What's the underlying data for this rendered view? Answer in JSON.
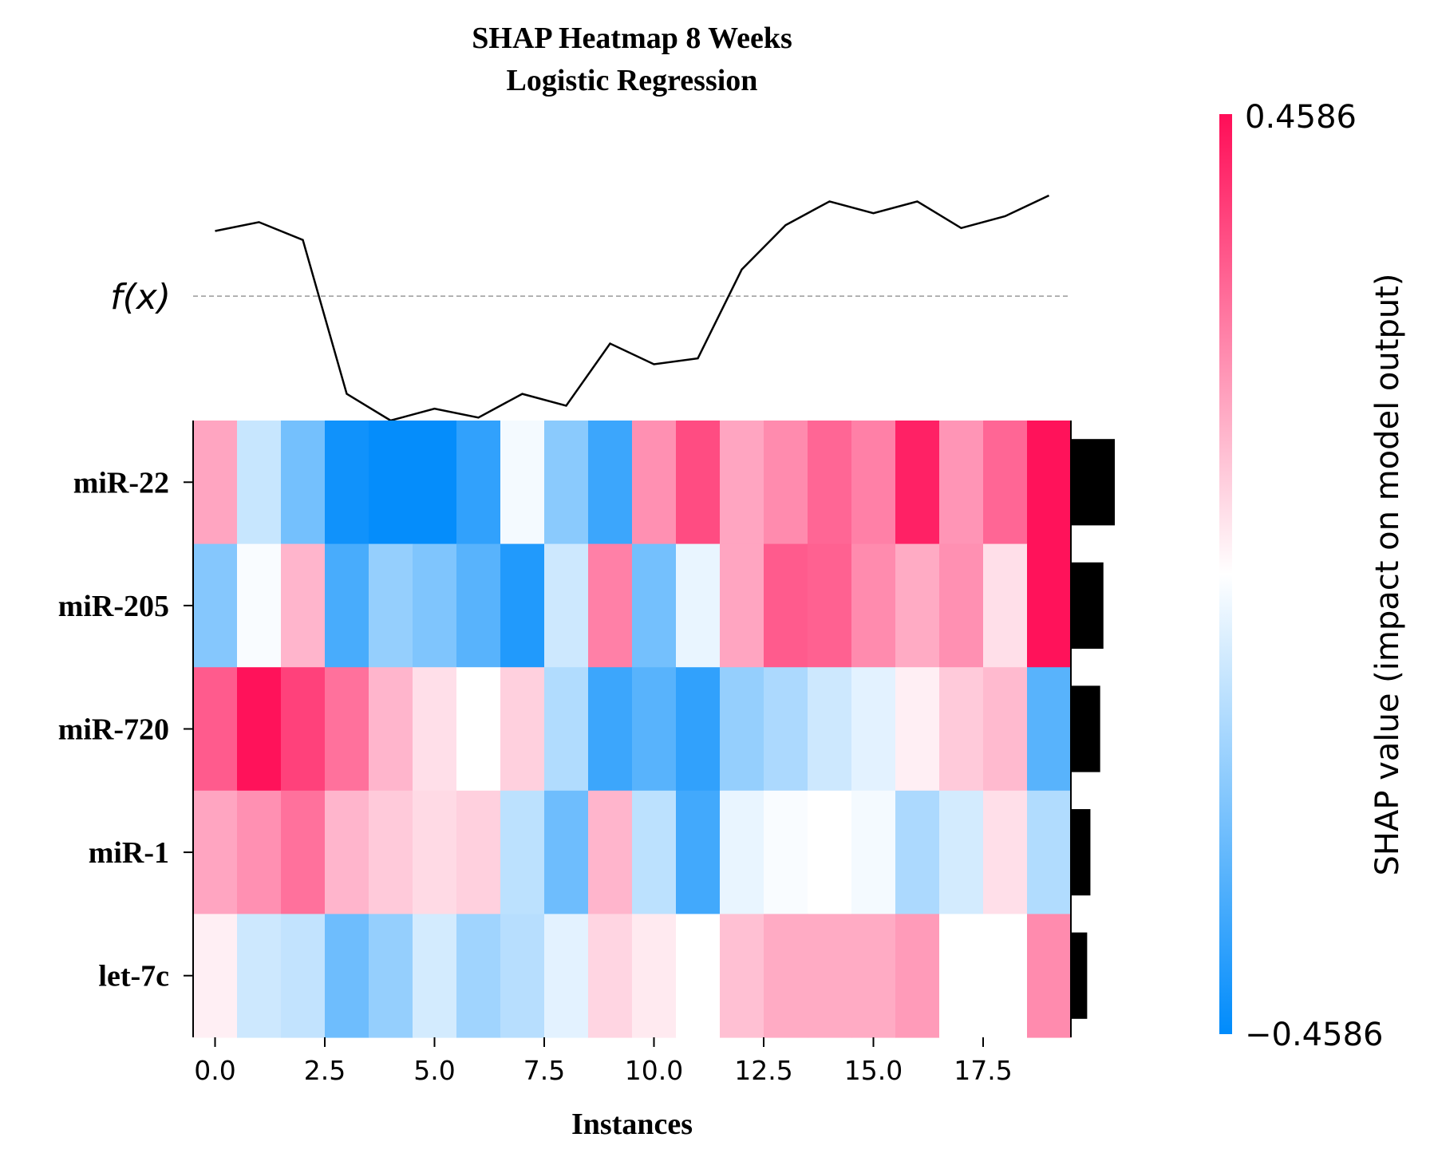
{
  "chart_data": {
    "type": "heatmap",
    "title_line1": "SHAP Heatmap 8 Weeks",
    "title_line2": "Logistic Regression",
    "xlabel": "Instances",
    "fx_label": "f(x)",
    "colorbar_label": "SHAP value (impact on model output)",
    "colorbar_max_label": "0.4586",
    "colorbar_min_label": "−0.4586",
    "vmin": -0.4586,
    "vmax": 0.4586,
    "colors": {
      "negative": "#008bfb",
      "positive": "#ff0d57",
      "mid": "#ffffff"
    },
    "x_ticks": [
      "0.0",
      "2.5",
      "5.0",
      "7.5",
      "10.0",
      "12.5",
      "15.0",
      "17.5"
    ],
    "x_tick_values": [
      0,
      2.5,
      5,
      7.5,
      10,
      12.5,
      15,
      17.5
    ],
    "features": [
      "miR-22",
      "miR-205",
      "miR-720",
      "miR-1",
      "let-7c"
    ],
    "values": [
      [
        0.17,
        -0.1,
        -0.25,
        -0.43,
        -0.45,
        -0.45,
        -0.37,
        -0.02,
        -0.21,
        -0.35,
        0.21,
        0.34,
        0.17,
        0.22,
        0.29,
        0.24,
        0.42,
        0.2,
        0.29,
        0.45
      ],
      [
        -0.22,
        -0.01,
        0.14,
        -0.33,
        -0.19,
        -0.23,
        -0.3,
        -0.4,
        -0.09,
        0.24,
        -0.25,
        -0.04,
        0.17,
        0.31,
        0.3,
        0.22,
        0.16,
        0.21,
        0.06,
        0.45
      ],
      [
        0.31,
        0.45,
        0.36,
        0.27,
        0.14,
        0.06,
        0.0,
        0.09,
        -0.14,
        -0.35,
        -0.3,
        -0.37,
        -0.19,
        -0.15,
        -0.09,
        -0.05,
        0.03,
        0.1,
        0.13,
        -0.3
      ],
      [
        0.17,
        0.21,
        0.27,
        0.14,
        0.1,
        0.07,
        0.09,
        -0.12,
        -0.26,
        0.14,
        -0.12,
        -0.34,
        -0.04,
        -0.01,
        0.0,
        -0.02,
        -0.15,
        -0.08,
        0.06,
        -0.14
      ],
      [
        0.03,
        -0.09,
        -0.11,
        -0.26,
        -0.19,
        -0.08,
        -0.17,
        -0.13,
        -0.05,
        0.08,
        0.04,
        0.0,
        0.12,
        0.16,
        0.16,
        0.16,
        0.19,
        0.0,
        0.0,
        0.22
      ]
    ],
    "model_output": [
      0.22,
      0.25,
      0.19,
      -0.33,
      -0.42,
      -0.38,
      -0.41,
      -0.33,
      -0.37,
      -0.16,
      -0.23,
      -0.21,
      0.09,
      0.24,
      0.32,
      0.28,
      0.32,
      0.23,
      0.27,
      0.34
    ],
    "fx_reference": 0.0,
    "feature_importance": [
      0.27,
      0.2,
      0.18,
      0.12,
      0.1
    ],
    "xlim": [
      -0.5,
      19.5
    ],
    "grid": false
  }
}
